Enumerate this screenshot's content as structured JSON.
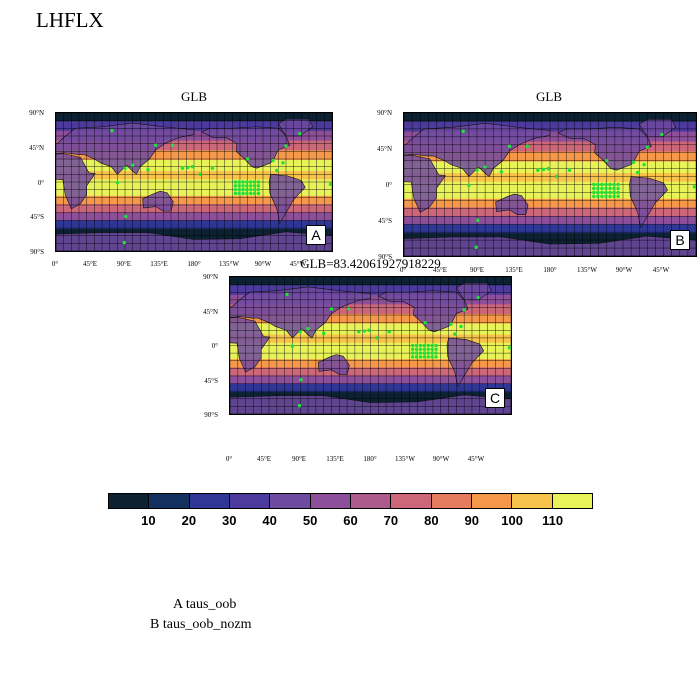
{
  "title": "LHFLX",
  "panels": [
    {
      "id": "A",
      "title": "GLB",
      "label": "A"
    },
    {
      "id": "B",
      "title": "GLB",
      "label": "B"
    },
    {
      "id": "C",
      "title": "GLB=83.42061927918229",
      "label": "C"
    }
  ],
  "axes": {
    "lat_ticks": [
      "90°N",
      "45°N",
      "0°",
      "45°S",
      "90°S"
    ],
    "lon_ticks": [
      "0°",
      "45°E",
      "90°E",
      "135°E",
      "180°",
      "135°W",
      "90°W",
      "45°W"
    ]
  },
  "colorbar": {
    "colors": [
      "#0c2233",
      "#13305f",
      "#2e3796",
      "#4c3a9c",
      "#6e4aa0",
      "#8e4f9a",
      "#ad5a8c",
      "#cc6779",
      "#e57c5d",
      "#f5984a",
      "#f8c34a",
      "#e8f35a"
    ],
    "labels": [
      "10",
      "20",
      "30",
      "40",
      "50",
      "60",
      "70",
      "80",
      "90",
      "100",
      "110"
    ]
  },
  "legend": [
    "A  taus_oob",
    "B  taus_oob_nozm"
  ]
}
